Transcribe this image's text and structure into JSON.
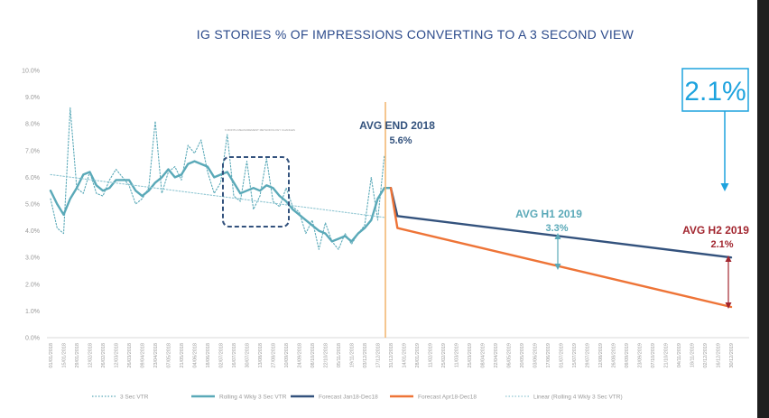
{
  "chart_data": {
    "type": "line",
    "title": "IG STORIES % OF IMPRESSIONS CONVERTING TO A 3 SECOND VIEW",
    "xlabel": "",
    "ylabel": "",
    "ylim": [
      0,
      10
    ],
    "y_ticks": [
      "0.0%",
      "1.0%",
      "2.0%",
      "3.0%",
      "4.0%",
      "5.0%",
      "6.0%",
      "7.0%",
      "8.0%",
      "9.0%",
      "10.0%"
    ],
    "x_ticks": [
      "01/01/2018",
      "15/01/2018",
      "29/01/2018",
      "12/02/2018",
      "26/02/2018",
      "12/03/2018",
      "26/03/2018",
      "09/04/2018",
      "23/04/2018",
      "07/05/2018",
      "21/05/2018",
      "04/06/2018",
      "18/06/2018",
      "02/07/2018",
      "16/07/2018",
      "30/07/2018",
      "13/08/2018",
      "27/08/2018",
      "10/09/2018",
      "24/09/2018",
      "08/10/2018",
      "22/10/2018",
      "05/11/2018",
      "19/11/2018",
      "03/12/2018",
      "17/12/2018",
      "31/12/2018",
      "14/01/2019",
      "28/01/2019",
      "11/02/2019",
      "25/02/2019",
      "11/03/2019",
      "25/03/2019",
      "08/04/2019",
      "22/04/2019",
      "06/05/2019",
      "20/05/2019",
      "03/06/2019",
      "17/06/2019",
      "01/07/2019",
      "15/07/2019",
      "29/07/2019",
      "12/08/2019",
      "26/08/2019",
      "09/09/2019",
      "23/09/2019",
      "07/10/2019",
      "21/10/2019",
      "04/11/2019",
      "18/11/2019",
      "02/12/2019",
      "16/12/2019",
      "30/12/2019"
    ],
    "x_start": "2018-01-01",
    "x_end": "2019-12-30",
    "grid": false,
    "legend_position": "bottom",
    "series": [
      {
        "name": "3 Sec VTR",
        "style": "dotted",
        "color": "#5aa9b8",
        "dates": [
          "2018-01-01",
          "2018-01-08",
          "2018-01-15",
          "2018-01-22",
          "2018-01-29",
          "2018-02-05",
          "2018-02-12",
          "2018-02-19",
          "2018-02-26",
          "2018-03-05",
          "2018-03-12",
          "2018-03-19",
          "2018-03-26",
          "2018-04-02",
          "2018-04-09",
          "2018-04-16",
          "2018-04-23",
          "2018-04-30",
          "2018-05-07",
          "2018-05-14",
          "2018-05-21",
          "2018-05-28",
          "2018-06-04",
          "2018-06-11",
          "2018-06-18",
          "2018-06-25",
          "2018-07-02",
          "2018-07-09",
          "2018-07-16",
          "2018-07-23",
          "2018-07-30",
          "2018-08-06",
          "2018-08-13",
          "2018-08-20",
          "2018-08-27",
          "2018-09-03",
          "2018-09-10",
          "2018-09-17",
          "2018-09-24",
          "2018-10-01",
          "2018-10-08",
          "2018-10-15",
          "2018-10-22",
          "2018-10-29",
          "2018-11-05",
          "2018-11-12",
          "2018-11-19",
          "2018-11-26",
          "2018-12-03",
          "2018-12-10",
          "2018-12-17",
          "2018-12-24"
        ],
        "values": [
          5.2,
          4.1,
          3.9,
          8.6,
          5.6,
          5.4,
          6.2,
          5.4,
          5.3,
          5.9,
          6.3,
          6.0,
          5.7,
          5.0,
          5.2,
          5.6,
          8.1,
          5.4,
          6.2,
          6.4,
          5.9,
          7.2,
          6.9,
          7.4,
          6.2,
          5.4,
          5.8,
          7.6,
          5.3,
          5.1,
          6.6,
          4.8,
          5.3,
          6.7,
          5.1,
          4.9,
          5.6,
          4.9,
          4.7,
          3.9,
          4.4,
          3.3,
          4.3,
          3.6,
          3.3,
          3.9,
          3.5,
          3.9,
          4.2,
          6.0,
          4.4,
          6.8
        ]
      },
      {
        "name": "Rolling 4 Wkly 3 Sec VTR",
        "style": "solid",
        "color": "#5aa9b8",
        "dates": [
          "2018-01-01",
          "2018-01-08",
          "2018-01-15",
          "2018-01-22",
          "2018-01-29",
          "2018-02-05",
          "2018-02-12",
          "2018-02-19",
          "2018-02-26",
          "2018-03-05",
          "2018-03-12",
          "2018-03-19",
          "2018-03-26",
          "2018-04-02",
          "2018-04-09",
          "2018-04-16",
          "2018-04-23",
          "2018-04-30",
          "2018-05-07",
          "2018-05-14",
          "2018-05-21",
          "2018-05-28",
          "2018-06-04",
          "2018-06-11",
          "2018-06-18",
          "2018-06-25",
          "2018-07-02",
          "2018-07-09",
          "2018-07-16",
          "2018-07-23",
          "2018-07-30",
          "2018-08-06",
          "2018-08-13",
          "2018-08-20",
          "2018-08-27",
          "2018-09-03",
          "2018-09-10",
          "2018-09-17",
          "2018-09-24",
          "2018-10-01",
          "2018-10-08",
          "2018-10-15",
          "2018-10-22",
          "2018-10-29",
          "2018-11-05",
          "2018-11-12",
          "2018-11-19",
          "2018-11-26",
          "2018-12-03",
          "2018-12-10",
          "2018-12-17",
          "2018-12-24",
          "2018-12-31"
        ],
        "values": [
          5.5,
          5.0,
          4.6,
          5.2,
          5.6,
          6.1,
          6.2,
          5.7,
          5.5,
          5.6,
          5.9,
          5.9,
          5.9,
          5.5,
          5.3,
          5.5,
          5.8,
          6.0,
          6.3,
          6.0,
          6.1,
          6.5,
          6.6,
          6.5,
          6.4,
          6.0,
          6.1,
          6.2,
          5.8,
          5.4,
          5.5,
          5.6,
          5.5,
          5.7,
          5.6,
          5.3,
          5.1,
          4.8,
          4.6,
          4.4,
          4.2,
          4.0,
          3.9,
          3.6,
          3.7,
          3.8,
          3.6,
          3.9,
          4.1,
          4.4,
          5.2,
          5.6,
          5.6
        ]
      },
      {
        "name": "Forecast Jan18-Dec18",
        "style": "solid",
        "color": "#33527d",
        "dates": [
          "2018-12-31",
          "2019-01-07",
          "2019-12-30"
        ],
        "values": [
          5.6,
          4.55,
          3.0
        ]
      },
      {
        "name": "Forecast Apr18-Dec18",
        "style": "solid",
        "color": "#ee7437",
        "dates": [
          "2018-12-31",
          "2019-01-07",
          "2019-12-30"
        ],
        "values": [
          5.6,
          4.1,
          1.15
        ]
      },
      {
        "name": "Linear (Rolling 4 Wkly 3 Sec VTR)",
        "style": "dotted",
        "color": "#8fc6d2",
        "dates": [
          "2018-01-01",
          "2018-12-24"
        ],
        "values": [
          6.1,
          4.5
        ]
      }
    ],
    "annotations": {
      "avg_end_2018": {
        "label": "AVG END 2018",
        "value": "5.6%",
        "color": "#33527d"
      },
      "avg_h1_2019": {
        "label": "AVG H1 2019",
        "value": "3.3%",
        "color": "#5aa9b8"
      },
      "avg_h2_2019": {
        "label": "AVG H2 2019",
        "value": "2.1%",
        "color": "#a2262f"
      },
      "callout": {
        "value": "2.1%",
        "color": "#1ea3de"
      },
      "box_note": "6 MONTH MEASUREMENT METHODOLOGY CHANGES"
    },
    "colors": {
      "title": "#2b4a8b",
      "teal": "#5aa9b8",
      "navy": "#33527d",
      "orange": "#ee7437",
      "dark_red": "#a2262f",
      "callout_blue": "#1ea3de",
      "cutoff_line": "#f2b46b",
      "axis_text": "#9a9a9a"
    }
  }
}
